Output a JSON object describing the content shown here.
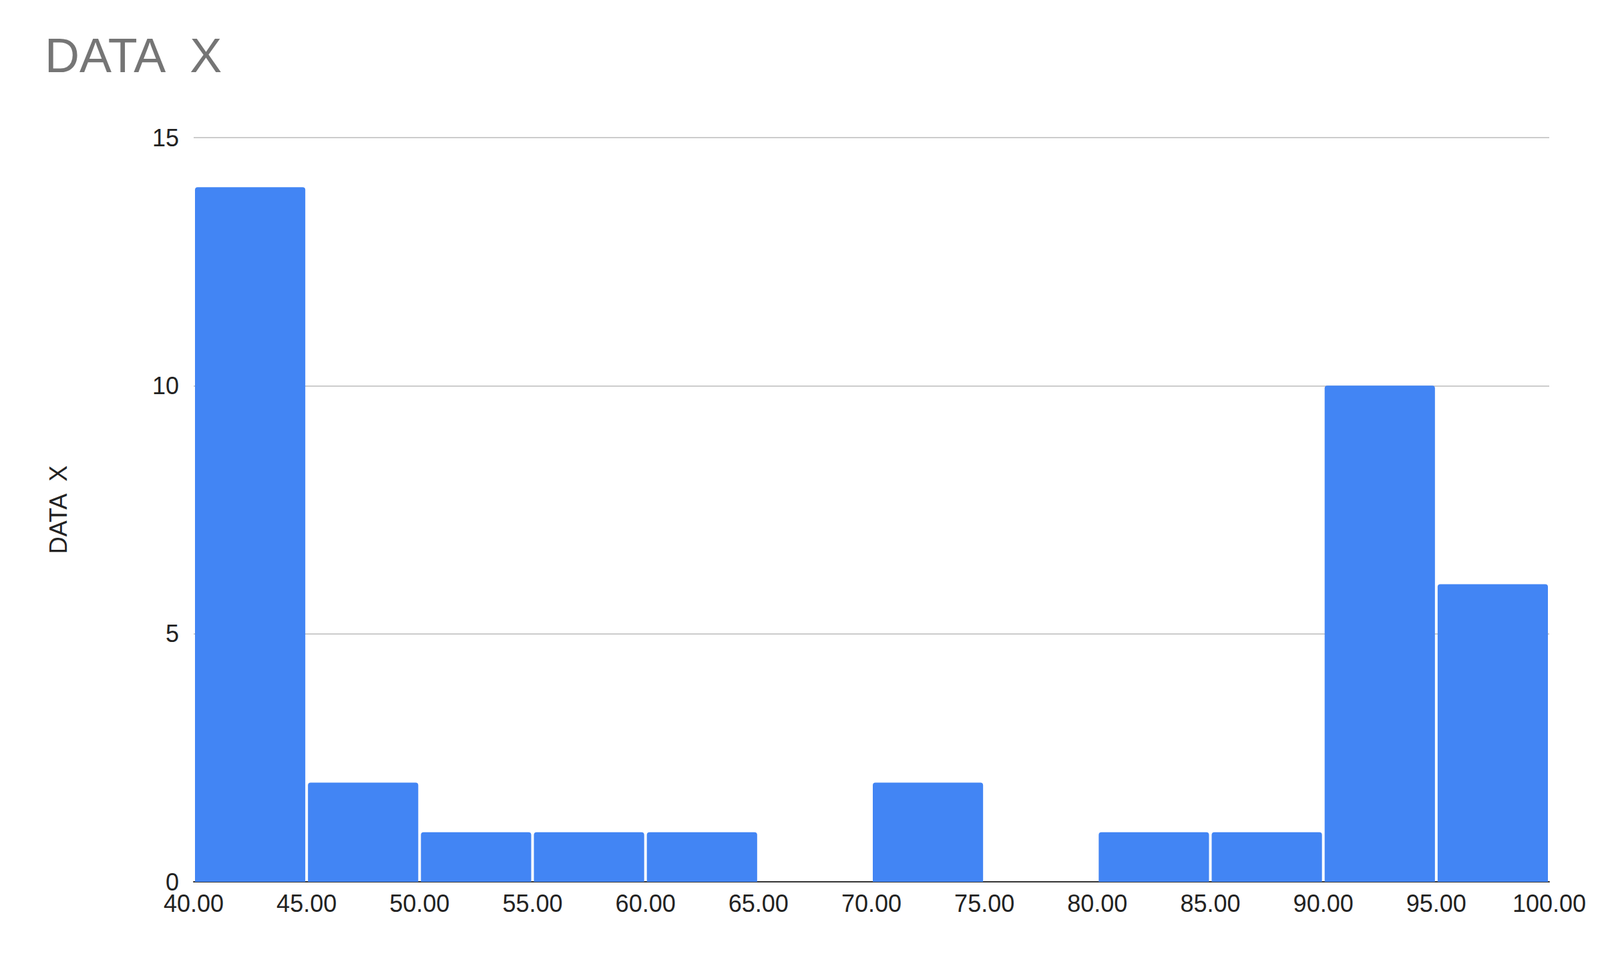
{
  "chart_data": {
    "type": "histogram",
    "title": "DATA  X",
    "ylabel": "DATA  X",
    "bins": [
      40,
      45,
      50,
      55,
      60,
      65,
      70,
      75,
      80,
      85,
      90,
      95,
      100
    ],
    "values": [
      14,
      2,
      1,
      1,
      1,
      0,
      2,
      0,
      1,
      1,
      10,
      6
    ],
    "color": "#4285f4",
    "xlim": [
      40,
      100
    ],
    "xticks": [
      {
        "value": 40,
        "label": "40.00"
      },
      {
        "value": 45,
        "label": "45.00"
      },
      {
        "value": 50,
        "label": "50.00"
      },
      {
        "value": 55,
        "label": "55.00"
      },
      {
        "value": 60,
        "label": "60.00"
      },
      {
        "value": 65,
        "label": "65.00"
      },
      {
        "value": 70,
        "label": "70.00"
      },
      {
        "value": 75,
        "label": "75.00"
      },
      {
        "value": 80,
        "label": "80.00"
      },
      {
        "value": 85,
        "label": "85.00"
      },
      {
        "value": 90,
        "label": "90.00"
      },
      {
        "value": 95,
        "label": "95.00"
      },
      {
        "value": 100,
        "label": "100.00"
      }
    ],
    "ylim": [
      0,
      15
    ],
    "yticks": [
      0,
      5,
      10,
      15
    ],
    "grid": true
  }
}
